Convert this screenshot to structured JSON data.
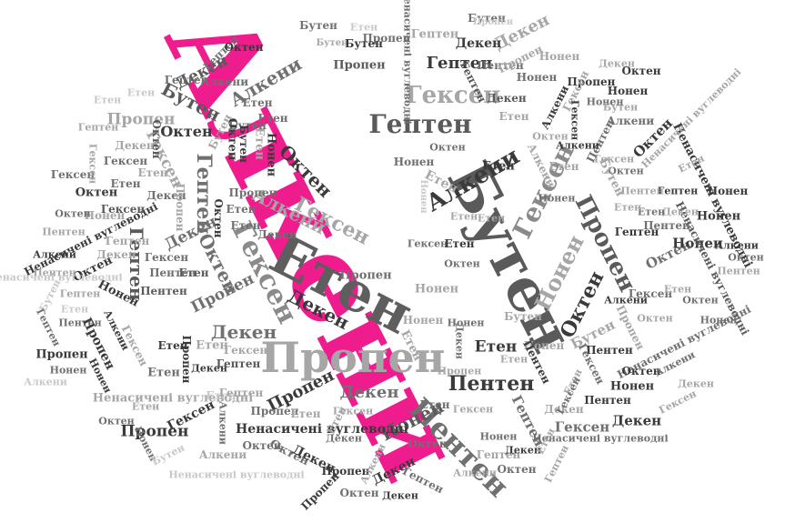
{
  "colors": {
    "background": "#ffffff",
    "accent": "#ef1c8e",
    "dark": "#3a3a3a",
    "mid": "#707070",
    "light": "#a6a6a6",
    "faint": "#c8c8c8"
  },
  "main_word": "Алкени",
  "words": [
    "Етен",
    "Пропен",
    "Бутен",
    "Пентен",
    "Гексен",
    "Гептен",
    "Октен",
    "Нонен",
    "Декен",
    "Алкени",
    "Ненасичені вуглеводні"
  ]
}
